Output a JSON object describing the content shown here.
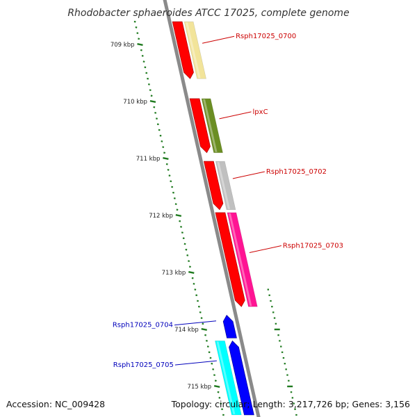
{
  "title": "Rhodobacter sphaeroides ATCC 17025, complete genome",
  "footer": {
    "accession": "Accession: NC_009428",
    "summary": "Topology: circular; Length: 3,217,726 bp; Genes: 3,156"
  },
  "colors": {
    "backbone": "#8a8a8a",
    "ticks": "#1f7a1f",
    "label_red": "#cc0000",
    "label_blue": "#0000bb",
    "feature_red": "#ff0000",
    "feature_blue": "#0000ff",
    "gene_0700": "#f2e49a",
    "gene_lpxc": "#6b8e23",
    "gene_0702": "#c0c0c0",
    "gene_0703": "#ff1493",
    "gene_0705": "#00ffff"
  },
  "axis": {
    "unit": "kbp",
    "major_ticks": [
      {
        "label": "709 kbp",
        "kbp": 709
      },
      {
        "label": "710 kbp",
        "kbp": 710
      },
      {
        "label": "711 kbp",
        "kbp": 711
      },
      {
        "label": "712 kbp",
        "kbp": 712
      },
      {
        "label": "713 kbp",
        "kbp": 713
      },
      {
        "label": "714 kbp",
        "kbp": 714
      },
      {
        "label": "715 kbp",
        "kbp": 715
      }
    ]
  },
  "features": [
    {
      "name": "Rsph17025_0700",
      "label": "Rsph17025_0700",
      "strand": "+",
      "start_kbp": 708.6,
      "end_kbp": 709.6,
      "color": "#f2e49a",
      "feature_color": "#ff0000",
      "label_color": "#cc0000"
    },
    {
      "name": "lpxC",
      "label": "lpxC",
      "strand": "+",
      "start_kbp": 709.95,
      "end_kbp": 710.9,
      "color": "#6b8e23",
      "feature_color": "#ff0000",
      "label_color": "#cc0000"
    },
    {
      "name": "Rsph17025_0702",
      "label": "Rsph17025_0702",
      "strand": "+",
      "start_kbp": 711.05,
      "end_kbp": 711.9,
      "color": "#c0c0c0",
      "feature_color": "#ff0000",
      "label_color": "#cc0000"
    },
    {
      "name": "Rsph17025_0703",
      "label": "Rsph17025_0703",
      "strand": "+",
      "start_kbp": 711.95,
      "end_kbp": 713.6,
      "color": "#ff1493",
      "feature_color": "#ff0000",
      "label_color": "#cc0000"
    },
    {
      "name": "Rsph17025_0704",
      "label": "Rsph17025_0704",
      "strand": "-",
      "start_kbp": 713.75,
      "end_kbp": 714.15,
      "color": "#0000ff",
      "feature_color": "#0000ff",
      "label_color": "#0000bb"
    },
    {
      "name": "Rsph17025_0705",
      "label": "Rsph17025_0705",
      "strand": "-",
      "start_kbp": 714.2,
      "end_kbp": 715.5,
      "color": "#00ffff",
      "feature_color": "#0000ff",
      "label_color": "#0000bb"
    }
  ]
}
